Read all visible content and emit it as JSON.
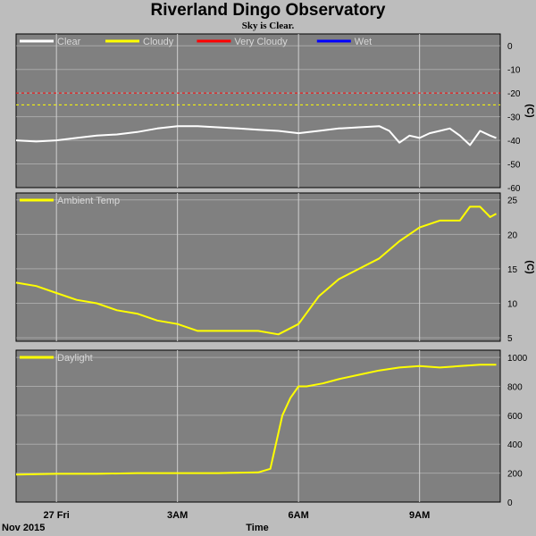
{
  "header": {
    "title": "Riverland Dingo Observatory",
    "subtitle": "Sky is Clear."
  },
  "footer": {
    "date_label": "Nov 2015",
    "axis_title": "Time"
  },
  "colors": {
    "background": "#bdbdbd",
    "plot_bg": "#808080",
    "grid": "#d0d0d0",
    "clear": "#ffffff",
    "cloudy": "#ffff00",
    "very_cloudy": "#ff0000",
    "wet": "#0000ff",
    "ambient": "#ffff00",
    "daylight": "#ffff00"
  },
  "chart_data": [
    {
      "type": "line",
      "panel": "sky",
      "ylabel": "(C)",
      "ylim": [
        -60,
        5
      ],
      "yticks": [
        0,
        -10,
        -20,
        -30,
        -40,
        -50,
        -60
      ],
      "legend": [
        {
          "name": "Clear",
          "color": "#ffffff"
        },
        {
          "name": "Cloudy",
          "color": "#ffff00"
        },
        {
          "name": "Very Cloudy",
          "color": "#ff0000"
        },
        {
          "name": "Wet",
          "color": "#0000ff"
        }
      ],
      "thresholds": [
        {
          "name": "Very Cloudy",
          "value": -20,
          "color": "#ff0000"
        },
        {
          "name": "Cloudy",
          "value": -25,
          "color": "#ffff00"
        }
      ],
      "series": [
        {
          "name": "Clear",
          "color": "#ffffff",
          "x": [
            0,
            0.5,
            1,
            1.5,
            2,
            2.5,
            3,
            3.5,
            4,
            4.5,
            5,
            5.5,
            6,
            6.5,
            7,
            7.5,
            8,
            8.5,
            9,
            9.25,
            9.5,
            9.75,
            10,
            10.25,
            10.5,
            10.75,
            11,
            11.25,
            11.5,
            11.75,
            11.9
          ],
          "y": [
            -40,
            -40.5,
            -40,
            -39,
            -38,
            -37.5,
            -36.5,
            -35,
            -34,
            -34,
            -34.5,
            -35,
            -35.5,
            -36,
            -37,
            -36,
            -35,
            -34.5,
            -34,
            -36,
            -41,
            -38,
            -39,
            -37,
            -36,
            -35,
            -38,
            -42,
            -36,
            -38,
            -39
          ]
        }
      ]
    },
    {
      "type": "line",
      "panel": "ambient",
      "ylabel": "(C)",
      "ylim": [
        4.5,
        26
      ],
      "yticks": [
        25,
        20,
        15,
        10,
        5
      ],
      "legend": [
        {
          "name": "Ambient Temp",
          "color": "#ffff00"
        }
      ],
      "series": [
        {
          "name": "Ambient Temp",
          "color": "#ffff00",
          "x": [
            0,
            0.5,
            1,
            1.5,
            2,
            2.5,
            3,
            3.5,
            4,
            4.5,
            5,
            5.5,
            6,
            6.5,
            7,
            7.5,
            8,
            8.5,
            9,
            9.5,
            10,
            10.5,
            11,
            11.25,
            11.5,
            11.75,
            11.9
          ],
          "y": [
            13,
            12.5,
            11.5,
            10.5,
            10,
            9,
            8.5,
            7.5,
            7,
            6,
            6,
            6,
            6,
            5.5,
            7,
            11,
            13.5,
            15,
            16.5,
            19,
            21,
            22,
            22,
            24,
            24,
            22.5,
            23
          ]
        }
      ]
    },
    {
      "type": "line",
      "panel": "daylight",
      "ylim": [
        0,
        1050
      ],
      "yticks": [
        1000,
        800,
        600,
        400,
        200,
        0
      ],
      "legend": [
        {
          "name": "Daylight",
          "color": "#ffff00"
        }
      ],
      "series": [
        {
          "name": "Daylight",
          "color": "#ffff00",
          "x": [
            0,
            1,
            2,
            3,
            4,
            5,
            6,
            6.3,
            6.6,
            6.8,
            7.0,
            7.2,
            7.6,
            8,
            8.5,
            9,
            9.5,
            10,
            10.5,
            11,
            11.5,
            11.9
          ],
          "y": [
            190,
            195,
            195,
            200,
            200,
            200,
            205,
            230,
            600,
            720,
            800,
            800,
            820,
            850,
            880,
            910,
            930,
            940,
            930,
            940,
            950,
            950
          ]
        }
      ]
    }
  ],
  "time_axis": {
    "ticks": [
      {
        "x": 1,
        "label": "27 Fri"
      },
      {
        "x": 4,
        "label": "3AM"
      },
      {
        "x": 7,
        "label": "6AM"
      },
      {
        "x": 10,
        "label": "9AM"
      }
    ],
    "xlim": [
      0,
      12
    ]
  }
}
